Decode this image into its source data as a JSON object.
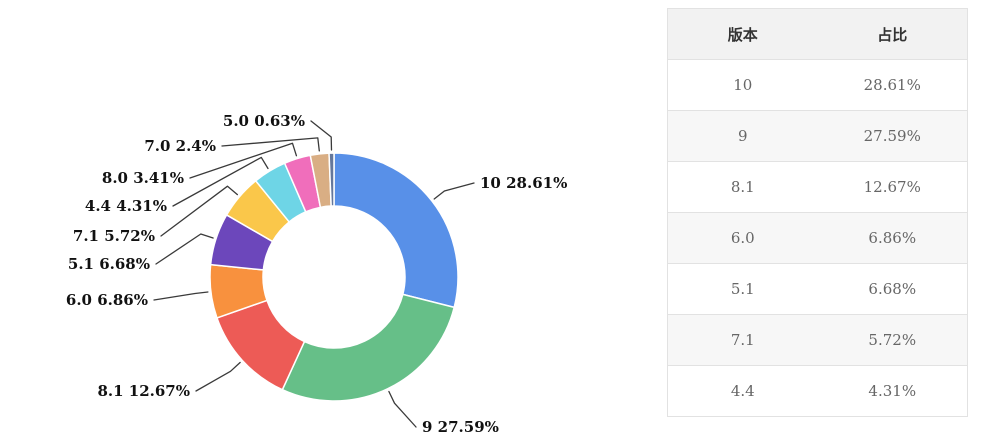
{
  "chart_data": {
    "type": "pie",
    "subtype": "donut",
    "direction": "clockwise",
    "start_angle_deg": 0,
    "label_format": "{name} {percent}",
    "legend": "none",
    "slices": [
      {
        "name": "10",
        "value": 28.61,
        "display": "28.61%",
        "color": "#5890E8"
      },
      {
        "name": "9",
        "value": 27.59,
        "display": "27.59%",
        "color": "#66BF88"
      },
      {
        "name": "8.1",
        "value": 12.67,
        "display": "12.67%",
        "color": "#ED5B56"
      },
      {
        "name": "6.0",
        "value": 6.86,
        "display": "6.86%",
        "color": "#F8913E"
      },
      {
        "name": "5.1",
        "value": 6.68,
        "display": "6.68%",
        "color": "#6C47BB"
      },
      {
        "name": "7.1",
        "value": 5.72,
        "display": "5.72%",
        "color": "#FAC74A"
      },
      {
        "name": "4.4",
        "value": 4.31,
        "display": "4.31%",
        "color": "#6ED5E6"
      },
      {
        "name": "8.0",
        "value": 3.41,
        "display": "3.41%",
        "color": "#F06EBB"
      },
      {
        "name": "7.0",
        "value": 2.4,
        "display": "2.4%",
        "color": "#D9AE84"
      },
      {
        "name": "5.0",
        "value": 0.63,
        "display": "0.63%",
        "color": "#64779B"
      }
    ]
  },
  "table": {
    "headers": [
      "版本",
      "占比"
    ],
    "rows": [
      {
        "version": "10",
        "share": "28.61%"
      },
      {
        "version": "9",
        "share": "27.59%"
      },
      {
        "version": "8.1",
        "share": "12.67%"
      },
      {
        "version": "6.0",
        "share": "6.86%"
      },
      {
        "version": "5.1",
        "share": "6.68%"
      },
      {
        "version": "7.1",
        "share": "5.72%"
      },
      {
        "version": "4.4",
        "share": "4.31%"
      }
    ]
  },
  "colors": {
    "label_text": "#111111",
    "leader_line": "#3a3a3a",
    "table_border": "#e2e2e2",
    "table_header_bg": "#f2f2f2",
    "table_alt_row_bg": "#f7f7f7",
    "table_header_text": "#333333",
    "table_text": "#666666"
  }
}
